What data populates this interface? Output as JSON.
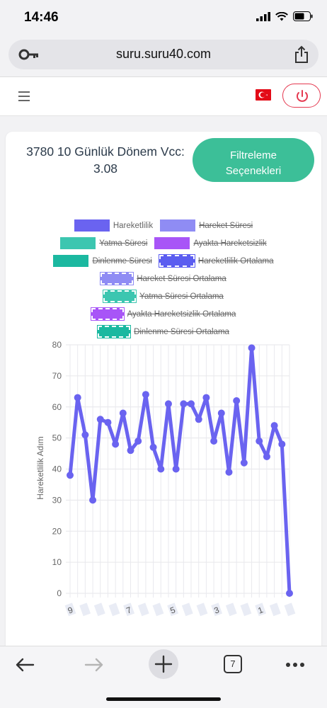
{
  "status": {
    "time": "14:46"
  },
  "browser": {
    "url": "suru.suru40.com",
    "tabs_count": "7"
  },
  "card": {
    "title": "3780 10 Günlük Dönem Vcc: 3.08",
    "filter_label_1": "Filtreleme",
    "filter_label_2": "Seçenekleri"
  },
  "legend": [
    {
      "label": "Hareketlilik",
      "color": "#6a63f0",
      "struck": false,
      "style": "solid"
    },
    {
      "label": "Hareket Süresi",
      "color": "#8f8cf4",
      "struck": true,
      "style": "solid"
    },
    {
      "label": "Yatma Süresi",
      "color": "#3cc6b0",
      "struck": true,
      "style": "solid"
    },
    {
      "label": "Ayakta Hareketsizlik",
      "color": "#a855f7",
      "struck": true,
      "style": "solid"
    },
    {
      "label": "Dinlenme Süresi",
      "color": "#1bb8a0",
      "struck": true,
      "style": "solid"
    },
    {
      "label": "Hareketlilik Ortalama",
      "color": "#5b5df0",
      "struck": true,
      "style": "dashed"
    },
    {
      "label": "Hareket Süresi Ortalama",
      "color": "#8f8cf4",
      "struck": true,
      "style": "dashed"
    },
    {
      "label": "Yatma Süresi Ortalama",
      "color": "#3cc6b0",
      "struck": true,
      "style": "dashed"
    },
    {
      "label": "Ayakta Hareketsizlik Ortalama",
      "color": "#a855f7",
      "struck": true,
      "style": "dashed"
    },
    {
      "label": "Dinlenme Süresi Ortalama",
      "color": "#1bb8a0",
      "struck": true,
      "style": "dashed"
    }
  ],
  "chart_data": {
    "type": "line",
    "ylabel": "Hareketlilik Adım",
    "ylim": [
      0,
      80
    ],
    "yticks": [
      0,
      10,
      20,
      30,
      40,
      50,
      60,
      70,
      80
    ],
    "xtick_labels": [
      "9",
      "",
      "",
      "",
      "7",
      "",
      "",
      "5",
      "",
      "",
      "3",
      "",
      "",
      "1",
      "",
      ""
    ],
    "series": [
      {
        "name": "Hareketlilik",
        "color": "#6a63f0",
        "values": [
          38,
          63,
          51,
          30,
          56,
          55,
          48,
          58,
          46,
          49,
          64,
          47,
          40,
          61,
          40,
          61,
          61,
          56,
          63,
          49,
          58,
          39,
          62,
          42,
          79,
          49,
          44,
          54,
          48,
          0
        ]
      }
    ],
    "grid": true
  }
}
